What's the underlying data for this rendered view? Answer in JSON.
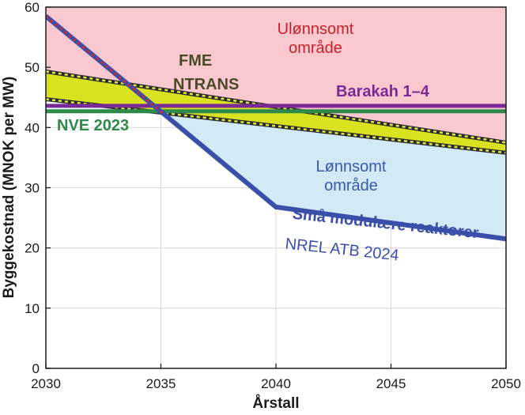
{
  "chart_data": {
    "type": "line",
    "xlabel": "Årstall",
    "ylabel": "Byggekostnad (MNOK per MW)",
    "xlim": [
      2030,
      2050
    ],
    "ylim": [
      0,
      60
    ],
    "xticks": [
      2030,
      2035,
      2040,
      2045,
      2050
    ],
    "yticks": [
      0,
      10,
      20,
      30,
      40,
      50,
      60
    ],
    "grid": true,
    "series": [
      {
        "name": "Små modulære reaktorer",
        "subtitle": "NREL ATB 2024",
        "color": "#3a4faa",
        "x": [
          2030,
          2040,
          2050
        ],
        "y": [
          58.5,
          26.8,
          21.5
        ]
      },
      {
        "name": "Barakah 1–4",
        "color": "#7a2a96",
        "x": [
          2030,
          2050
        ],
        "y": [
          43.6,
          43.6
        ]
      },
      {
        "name": "NVE 2023",
        "color": "#2d8a4a",
        "x": [
          2030,
          2050
        ],
        "y": [
          42.7,
          42.7
        ]
      },
      {
        "name": "FME NTRANS",
        "color": "#d9e21e",
        "x": [
          2030,
          2050
        ],
        "y_upper": [
          49.3,
          37.5
        ],
        "y_lower": [
          44.7,
          35.8
        ]
      }
    ],
    "regions": [
      {
        "label": [
          "Ulønnsomt",
          "område"
        ],
        "color": "#f9c9cf",
        "text_color": "#c8202a"
      },
      {
        "label": [
          "Lønnsomt",
          "område"
        ],
        "color": "#d2e9f6",
        "text_color": "#3a5aa8"
      }
    ]
  }
}
